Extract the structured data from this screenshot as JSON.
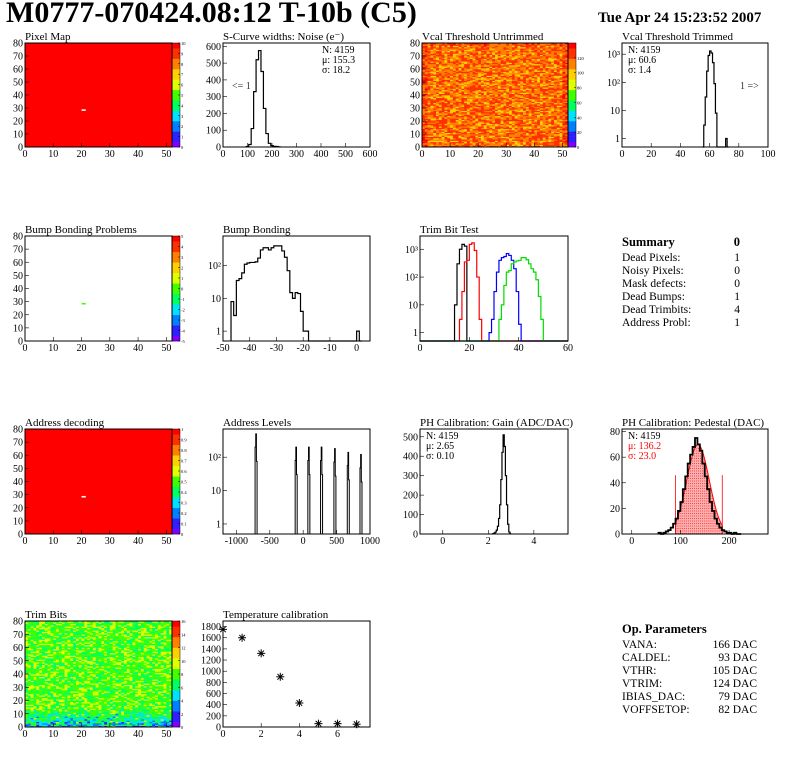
{
  "header": {
    "title": "M0777-070424.08:12 T-10b (C5)",
    "date": "Tue Apr 24 15:23:52 2007"
  },
  "palette": [
    "#8000ff",
    "#3020ff",
    "#0080ff",
    "#00e0ff",
    "#00ff60",
    "#40ff00",
    "#e0ff00",
    "#ffd000",
    "#ff8000",
    "#ff3000",
    "#ff0000"
  ],
  "summary": {
    "title": "Summary",
    "value": "0",
    "items": [
      {
        "label": "Dead Pixels:",
        "value": "1"
      },
      {
        "label": "Noisy Pixels:",
        "value": "0"
      },
      {
        "label": "Mask defects:",
        "value": "0"
      },
      {
        "label": "Dead Bumps:",
        "value": "1"
      },
      {
        "label": "Dead Trimbits:",
        "value": "4"
      },
      {
        "label": "Address Probl:",
        "value": "1"
      }
    ]
  },
  "op_parameters": {
    "title": "Op. Parameters",
    "items": [
      {
        "label": "VANA:",
        "value": "166 DAC"
      },
      {
        "label": "CALDEL:",
        "value": "93 DAC"
      },
      {
        "label": "VTHR:",
        "value": "105 DAC"
      },
      {
        "label": "VTRIM:",
        "value": "124 DAC"
      },
      {
        "label": "IBIAS_DAC:",
        "value": "79 DAC"
      },
      {
        "label": "VOFFSETOP:",
        "value": "82 DAC"
      }
    ]
  },
  "chart_data": [
    {
      "id": "pixel_map",
      "type": "heatmap",
      "title": "Pixel Map",
      "xlim": [
        0,
        52
      ],
      "ylim": [
        0,
        80
      ],
      "xticks": [
        0,
        10,
        20,
        30,
        40,
        50
      ],
      "yticks": [
        0,
        10,
        20,
        30,
        40,
        50,
        60,
        70,
        80
      ],
      "zlim": [
        0,
        10
      ],
      "zticks": [
        0,
        1,
        2,
        3,
        4,
        5,
        6,
        7,
        8,
        9,
        10
      ],
      "fill_value": 10,
      "empty_value": null,
      "cells": [
        {
          "col": 20,
          "row": 28,
          "value": null
        }
      ]
    },
    {
      "id": "scurve",
      "type": "histogram",
      "title": "S-Curve widths: Noise (e⁻)",
      "xlim": [
        0,
        600
      ],
      "ylim": [
        0,
        620
      ],
      "xticks": [
        0,
        100,
        200,
        300,
        400,
        500,
        600
      ],
      "yticks": [
        0,
        100,
        200,
        300,
        400,
        500,
        600
      ],
      "stats": [
        "N: 4159",
        "μ: 155.3",
        "σ: 18.2"
      ],
      "stats_pos": "top-right",
      "underflow_label": "<= 1",
      "series": [
        {
          "color": "#000000",
          "x0": 95,
          "dx": 10,
          "values": [
            3,
            15,
            110,
            330,
            520,
            575,
            450,
            230,
            80,
            22,
            8,
            4,
            3,
            1
          ]
        }
      ]
    },
    {
      "id": "vcal_untrimmed",
      "type": "heatmap",
      "title": "Vcal Threshold Untrimmed",
      "xlim": [
        0,
        52
      ],
      "ylim": [
        0,
        80
      ],
      "xticks": [
        0,
        10,
        20,
        30,
        40,
        50
      ],
      "yticks": [
        0,
        10,
        20,
        30,
        40,
        50,
        60,
        70,
        80
      ],
      "zlim": [
        0,
        140
      ],
      "zticks": [
        0,
        20,
        40,
        60,
        80,
        100,
        120
      ],
      "value_range": [
        98,
        132
      ]
    },
    {
      "id": "vcal_trimmed",
      "type": "histogram",
      "title": "Vcal Threshold Trimmed",
      "xlim": [
        0,
        100
      ],
      "ylim": [
        0.5,
        2500
      ],
      "log_y": true,
      "xticks": [
        0,
        20,
        40,
        60,
        80,
        100
      ],
      "yticks": [
        1,
        10,
        100,
        1000
      ],
      "ytick_labels": [
        "1",
        "10",
        "10²",
        "10³"
      ],
      "stats": [
        "N: 4159",
        "μ: 60.6",
        "σ:  1.4"
      ],
      "stats_pos": "top-left",
      "overflow_label": "1 =>",
      "series": [
        {
          "color": "#000000",
          "x0": 55,
          "dx": 1,
          "values": [
            0,
            3,
            30,
            250,
            900,
            1300,
            1100,
            500,
            90,
            8,
            0,
            0,
            0,
            0,
            0,
            0,
            1,
            0
          ]
        }
      ]
    },
    {
      "id": "bump_problems",
      "type": "heatmap",
      "title": "Bump Bonding Problems",
      "xlim": [
        0,
        52
      ],
      "ylim": [
        0,
        80
      ],
      "xticks": [
        0,
        10,
        20,
        30,
        40,
        50
      ],
      "yticks": [
        0,
        10,
        20,
        30,
        40,
        50,
        60,
        70,
        80
      ],
      "zlim": [
        -5,
        5
      ],
      "zticks": [
        -5,
        -4,
        -3,
        -2,
        -1,
        0,
        1,
        2,
        3,
        4,
        5
      ],
      "fill_value": null,
      "cells": [
        {
          "col": 20,
          "row": 28,
          "value": 0
        }
      ]
    },
    {
      "id": "bump_bonding",
      "type": "histogram",
      "title": "Bump Bonding",
      "xlim": [
        -50,
        5
      ],
      "ylim": [
        0.5,
        800
      ],
      "log_y": true,
      "xticks": [
        -50,
        -40,
        -30,
        -20,
        -10,
        0
      ],
      "yticks": [
        1,
        10,
        100
      ],
      "ytick_labels": [
        "1",
        "10",
        "10²"
      ],
      "series": [
        {
          "color": "#000000",
          "x0": -47,
          "dx": 1,
          "values": [
            8,
            3,
            35,
            40,
            60,
            110,
            120,
            125,
            125,
            130,
            170,
            300,
            350,
            350,
            300,
            350,
            400,
            400,
            400,
            280,
            180,
            70,
            15,
            10,
            15,
            14,
            4,
            1,
            1,
            0,
            0,
            0,
            0,
            0,
            0,
            0,
            0,
            0,
            0,
            0,
            0,
            0,
            0,
            0,
            0,
            0,
            0,
            1,
            0
          ]
        }
      ]
    },
    {
      "id": "trim_bit_test",
      "type": "histogram",
      "title": "Trim Bit Test",
      "xlim": [
        0,
        60
      ],
      "ylim": [
        0.5,
        3000
      ],
      "log_y": true,
      "xticks": [
        0,
        20,
        40,
        60
      ],
      "yticks": [
        1,
        10,
        100,
        1000
      ],
      "ytick_labels": [
        "1",
        "10",
        "10²",
        "10³"
      ],
      "series": [
        {
          "color": "#000000",
          "x0": 14,
          "dx": 1,
          "values": [
            10,
            300,
            1000,
            1500,
            1300,
            0
          ]
        },
        {
          "color": "#ff0000",
          "x0": 16,
          "dx": 1,
          "values": [
            3,
            30,
            350,
            400,
            1500,
            1700,
            900,
            100,
            3,
            0
          ]
        },
        {
          "color": "#0000ff",
          "x0": 28,
          "dx": 1,
          "values": [
            1,
            3,
            30,
            150,
            400,
            500,
            550,
            700,
            600,
            400,
            200,
            30,
            2,
            0
          ]
        },
        {
          "color": "#00dd00",
          "x0": 32,
          "dx": 1,
          "values": [
            3,
            10,
            50,
            150,
            170,
            300,
            350,
            380,
            400,
            500,
            500,
            420,
            300,
            200,
            150,
            80,
            20,
            3,
            0
          ]
        }
      ]
    },
    {
      "id": "address_decoding",
      "type": "heatmap",
      "title": "Address decoding",
      "xlim": [
        0,
        52
      ],
      "ylim": [
        0,
        80
      ],
      "xticks": [
        0,
        10,
        20,
        30,
        40,
        50
      ],
      "yticks": [
        0,
        10,
        20,
        30,
        40,
        50,
        60,
        70,
        80
      ],
      "zlim": [
        0,
        1
      ],
      "zticks": [
        0,
        0.1,
        0.2,
        0.3,
        0.4,
        0.5,
        0.6,
        0.7,
        0.8,
        0.9,
        1
      ],
      "fill_value": 1,
      "cells": [
        {
          "col": 20,
          "row": 28,
          "value": null
        }
      ]
    },
    {
      "id": "address_levels",
      "type": "spikes",
      "title": "Address Levels",
      "xlim": [
        -1200,
        1000
      ],
      "ylim": [
        0.5,
        700
      ],
      "log_y": true,
      "xticks": [
        -1000,
        -500,
        0,
        500,
        1000
      ],
      "yticks": [
        1,
        10,
        100
      ],
      "ytick_labels": [
        "1",
        "10",
        "10²"
      ],
      "peaks": [
        {
          "x": -700,
          "y": 500
        },
        {
          "x": -100,
          "y": 200
        },
        {
          "x": 90,
          "y": 200
        },
        {
          "x": 280,
          "y": 200
        },
        {
          "x": 480,
          "y": 180
        },
        {
          "x": 680,
          "y": 140
        },
        {
          "x": 870,
          "y": 120
        }
      ]
    },
    {
      "id": "ph_gain",
      "type": "histogram",
      "title": "PH Calibration: Gain (ADC/DAC)",
      "xlim": [
        -1,
        5.5
      ],
      "ylim": [
        0,
        540
      ],
      "xticks": [
        0,
        2,
        4
      ],
      "yticks": [
        0,
        100,
        200,
        300,
        400,
        500
      ],
      "stats": [
        "N: 4159",
        "μ: 2.65",
        "σ: 0.10"
      ],
      "stats_pos": "top-left",
      "series": [
        {
          "color": "#000000",
          "x0": 2.2,
          "dx": 0.05,
          "values": [
            2,
            5,
            10,
            20,
            40,
            80,
            150,
            280,
            420,
            510,
            450,
            300,
            150,
            50,
            10,
            3
          ]
        }
      ]
    },
    {
      "id": "ph_pedestal",
      "type": "histogram",
      "title": "PH Calibration: Pedestal (DAC)",
      "xlim": [
        -20,
        280
      ],
      "ylim": [
        0,
        82
      ],
      "xticks": [
        0,
        100,
        200
      ],
      "yticks": [
        0,
        20,
        40,
        60,
        80
      ],
      "stats": [
        "N: 4159",
        "μ: 136.2",
        "σ: 23.0"
      ],
      "stats_colors": [
        "#000000",
        "#ff0000",
        "#ff0000"
      ],
      "stats_pos": "top-left",
      "fit": {
        "color": "#ff0000",
        "mean": 136.2,
        "sigma": 23.0,
        "range": [
          90,
          186
        ]
      },
      "series": [
        {
          "color": "#000000",
          "x0": 55,
          "dx": 5,
          "values": [
            1,
            0,
            1,
            2,
            3,
            5,
            8,
            12,
            18,
            25,
            35,
            45,
            55,
            62,
            68,
            75,
            70,
            65,
            55,
            45,
            35,
            25,
            18,
            12,
            8,
            5,
            3,
            2,
            1,
            1,
            0,
            1,
            0,
            0
          ]
        }
      ]
    },
    {
      "id": "trim_bits",
      "type": "heatmap",
      "title": "Trim Bits",
      "xlim": [
        0,
        52
      ],
      "ylim": [
        0,
        80
      ],
      "xticks": [
        0,
        10,
        20,
        30,
        40,
        50
      ],
      "yticks": [
        0,
        10,
        20,
        30,
        40,
        50,
        60,
        70,
        80
      ],
      "zlim": [
        0,
        16
      ],
      "zticks": [
        0,
        2,
        4,
        6,
        8,
        10,
        12,
        14,
        16
      ],
      "value_range": [
        6,
        10
      ]
    },
    {
      "id": "temperature",
      "type": "scatter",
      "title": "Temperature calibration",
      "xlim": [
        0,
        7.7
      ],
      "ylim": [
        0,
        1900
      ],
      "xticks": [
        0,
        2,
        4,
        6
      ],
      "yticks": [
        0,
        200,
        400,
        600,
        800,
        1000,
        1200,
        1400,
        1600,
        1800
      ],
      "x": [
        0,
        1,
        2,
        3,
        4,
        5,
        6,
        7
      ],
      "y": [
        1750,
        1600,
        1320,
        900,
        430,
        60,
        60,
        50
      ]
    }
  ]
}
